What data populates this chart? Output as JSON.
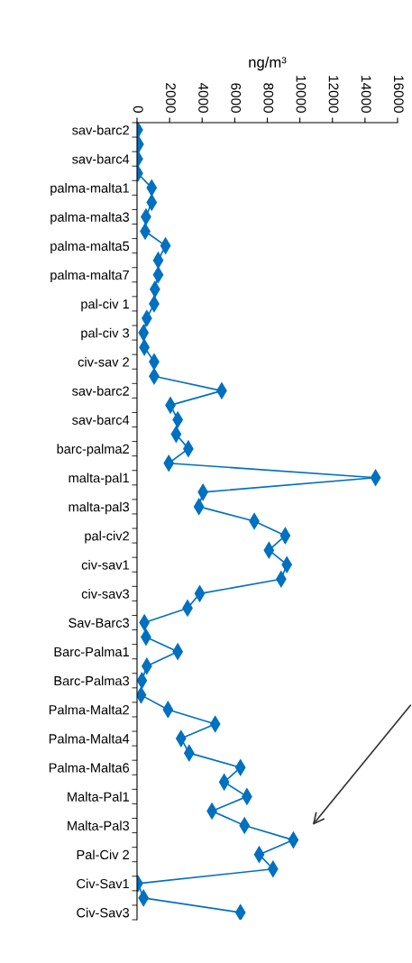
{
  "chart_data": {
    "type": "line",
    "orientation": "horizontal",
    "xlabel": "ng/m³",
    "categories": [
      "sav-barc2",
      null,
      "sav-barc4",
      null,
      "palma-malta1",
      null,
      "palma-malta3",
      null,
      "palma-malta5",
      null,
      "palma-malta7",
      null,
      "pal-civ 1",
      null,
      "pal-civ 3",
      null,
      "civ-sav 2",
      null,
      "sav-barc2",
      null,
      "sav-barc4",
      null,
      "barc-palma2",
      null,
      "malta-pal1",
      null,
      "malta-pal3",
      null,
      "pal-civ2",
      null,
      "civ-sav1",
      null,
      "civ-sav3",
      null,
      "Sav-Barc3",
      null,
      "Barc-Palma1",
      null,
      "Barc-Palma3",
      null,
      "Palma-Malta2",
      null,
      "Palma-Malta4",
      null,
      "Palma-Malta6",
      null,
      "Malta-Pal1",
      null,
      "Malta-Pal3",
      null,
      "Pal-Civ 2",
      null,
      "Civ-Sav1",
      null,
      "Civ-Sav3"
    ],
    "series": [
      {
        "color": "#0070c0",
        "values": [
          50,
          100,
          50,
          50,
          900,
          900,
          550,
          500,
          1750,
          1300,
          1300,
          1100,
          1050,
          600,
          400,
          450,
          1050,
          1050,
          5200,
          2050,
          2500,
          2400,
          3150,
          1950,
          14650,
          4050,
          3800,
          7200,
          9100,
          8100,
          9200,
          8850,
          3850,
          3100,
          450,
          550,
          2500,
          600,
          300,
          250,
          1900,
          4800,
          2700,
          3200,
          6350,
          5350,
          6750,
          4600,
          6600,
          9600,
          7500,
          8350,
          50,
          400,
          6350
        ]
      }
    ],
    "xlim": [
      0,
      16000
    ],
    "xticks": [
      0,
      2000,
      4000,
      6000,
      8000,
      10000,
      12000,
      14000,
      16000
    ],
    "marker": "diamond",
    "line_style": "solid",
    "grid": false,
    "legend": false
  }
}
